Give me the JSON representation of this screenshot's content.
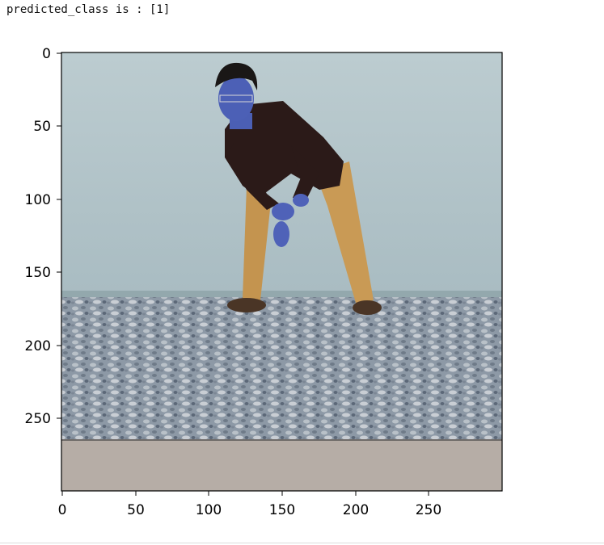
{
  "cell_output": {
    "text": "predicted_class is : [1]"
  },
  "figure": {
    "image_alt_subject": "person-crouching-in-front-of-wall",
    "axes": {
      "xticks": [
        "0",
        "50",
        "100",
        "150",
        "200",
        "250"
      ],
      "yticks": [
        "0",
        "50",
        "100",
        "150",
        "200",
        "250"
      ],
      "xlim": [
        0,
        300
      ],
      "ylim": [
        0,
        300
      ]
    }
  }
}
